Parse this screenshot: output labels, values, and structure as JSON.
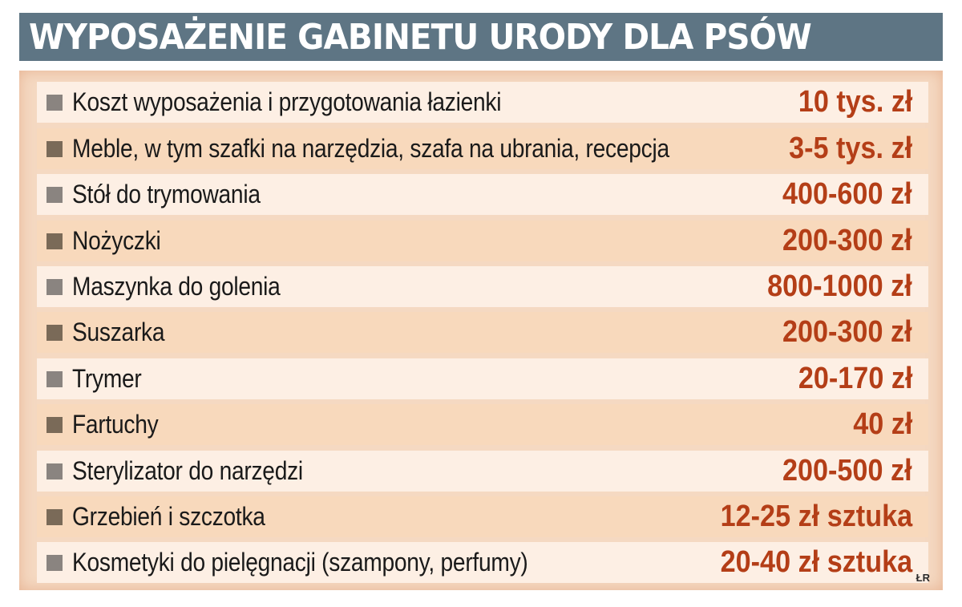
{
  "title": "WYPOSAŻENIE GABINETU URODY DLA PSÓW",
  "credit": "ŁR",
  "colors": {
    "header_bg": "#5e7584",
    "panel_bg": "#f5d9c2",
    "row_light": "#fdefe4",
    "row_dark": "#f8d9bc",
    "price_text": "#b43e17"
  },
  "rows": [
    {
      "label": "Koszt wyposażenia i przygotowania łazienki",
      "price": "10 tys. zł"
    },
    {
      "label": "Meble, w tym szafki na narzędzia, szafa na ubrania, recepcja",
      "price": "3-5 tys. zł"
    },
    {
      "label": "Stół do trymowania",
      "price": "400-600 zł"
    },
    {
      "label": "Nożyczki",
      "price": "200-300 zł"
    },
    {
      "label": "Maszynka do golenia",
      "price": "800-1000 zł"
    },
    {
      "label": "Suszarka",
      "price": "200-300 zł"
    },
    {
      "label": "Trymer",
      "price": "20-170 zł"
    },
    {
      "label": "Fartuchy",
      "price": "40 zł"
    },
    {
      "label": "Sterylizator do narzędzi",
      "price": "200-500 zł"
    },
    {
      "label": "Grzebień i szczotka",
      "price": "12-25 zł sztuka"
    },
    {
      "label": "Kosmetyki do pielęgnacji (szampony, perfumy)",
      "price": "20-40 zł sztuka"
    }
  ]
}
